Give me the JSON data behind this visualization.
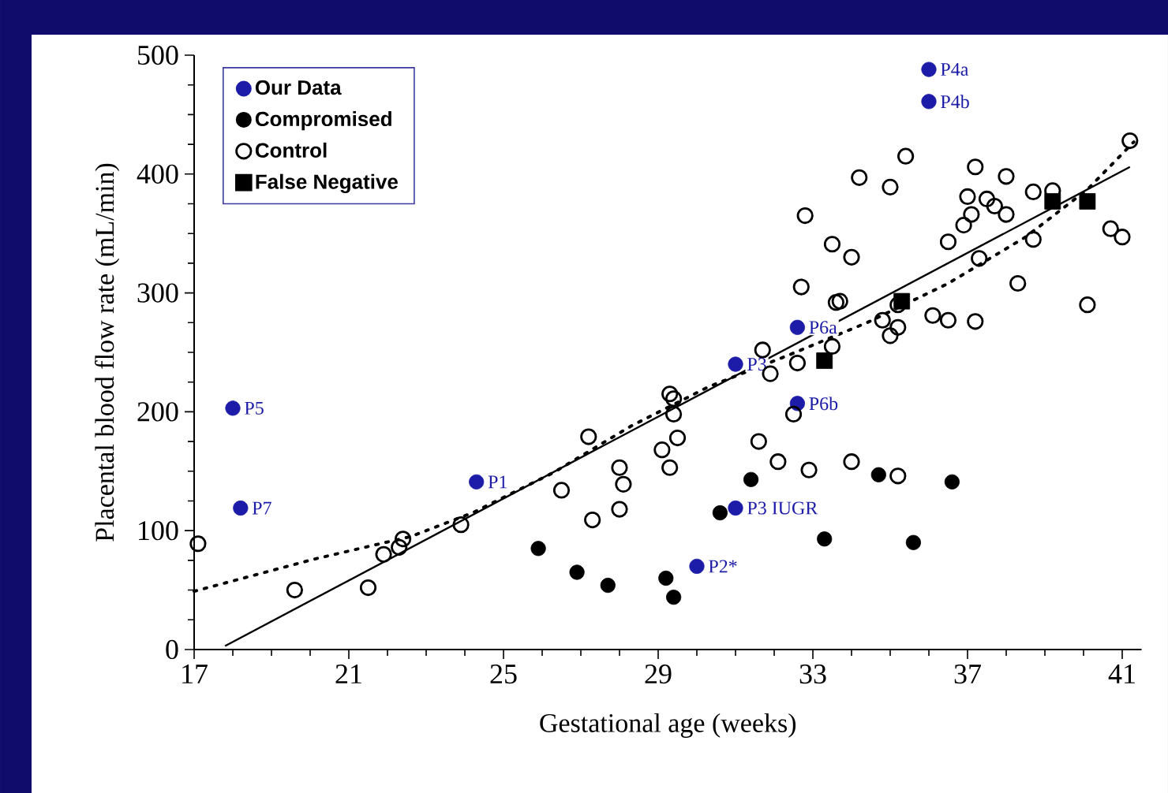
{
  "chart_data": {
    "type": "scatter",
    "xlabel": "Gestational age (weeks)",
    "ylabel": "Placental blood flow rate (mL/min)",
    "xlim": [
      17,
      41.5
    ],
    "ylim": [
      0,
      500
    ],
    "xticks": [
      17,
      21,
      25,
      29,
      33,
      37,
      41
    ],
    "yticks": [
      0,
      100,
      200,
      300,
      400,
      500
    ],
    "legend": "top left",
    "grid": false,
    "series": [
      {
        "type": "line",
        "color": "#000000",
        "line_style": "solid",
        "marker": "none",
        "x": [
          17.8,
          41.2
        ],
        "values": [
          3,
          406
        ]
      },
      {
        "type": "line",
        "color": "#000000",
        "line_style": "dotted",
        "marker": "none",
        "x": [
          17,
          20.1,
          22.6,
          24.2,
          26.3,
          28.3,
          30.3,
          32.4,
          34.4,
          36.5,
          38.5,
          40.1,
          41.3
        ],
        "values": [
          49,
          76,
          95,
          115,
          149,
          188,
          221,
          248,
          275,
          308,
          347,
          387,
          427
        ]
      },
      {
        "name": "Our Data",
        "color": "#1c1ca8",
        "marker": "circle",
        "x": [
          18.0,
          18.2,
          24.3,
          31.0,
          32.6,
          32.6,
          31.0,
          30.0,
          36.0,
          36.0
        ],
        "values": [
          203,
          119,
          141,
          240,
          271,
          207,
          119,
          70,
          488,
          461
        ]
      },
      {
        "name": "Compromised",
        "color": "#000000",
        "marker": "circle",
        "x": [
          25.9,
          26.9,
          27.7,
          29.2,
          29.4,
          30.6,
          31.4,
          33.3,
          34.7,
          35.6,
          36.6
        ],
        "values": [
          85,
          65,
          54,
          60,
          44,
          115,
          143,
          93,
          147,
          90,
          141
        ]
      },
      {
        "name": "Control",
        "color": "#000000",
        "marker": "open circle",
        "x": [
          17.1,
          19.6,
          21.5,
          21.9,
          22.4,
          22.3,
          23.9,
          26.5,
          27.2,
          27.3,
          28.0,
          28.1,
          28.0,
          29.1,
          29.3,
          29.4,
          29.4,
          29.5,
          29.3,
          31.6,
          32.1,
          32.9,
          34.0,
          35.2,
          32.5,
          31.7,
          32.6,
          31.9,
          33.5,
          35.0,
          32.8,
          33.5,
          34.0,
          34.2,
          35.0,
          35.4,
          32.7,
          33.6,
          33.7,
          34.8,
          35.2,
          35.2,
          36.1,
          36.5,
          37.2,
          37.2,
          38.0,
          38.7,
          39.2,
          37.0,
          37.5,
          37.7,
          38.0,
          37.1,
          36.9,
          36.5,
          38.7,
          37.3,
          38.3,
          40.1,
          40.7,
          41.0,
          41.2
        ],
        "values": [
          89,
          50,
          52,
          80,
          93,
          86,
          105,
          134,
          179,
          109,
          153,
          139,
          118,
          168,
          153,
          211,
          198,
          178,
          215,
          175,
          158,
          151,
          158,
          146,
          198,
          252,
          241,
          232,
          255,
          264,
          365,
          341,
          330,
          397,
          389,
          415,
          305,
          292,
          293,
          277,
          271,
          290,
          281,
          277,
          276,
          406,
          398,
          385,
          386,
          381,
          379,
          373,
          366,
          366,
          357,
          343,
          345,
          329,
          308,
          290,
          354,
          347,
          428
        ]
      },
      {
        "name": "False Negative",
        "color": "#000000",
        "marker": "square",
        "x": [
          33.3,
          35.3,
          39.2,
          40.1
        ],
        "values": [
          243,
          293,
          377,
          377
        ]
      }
    ],
    "annotations": [
      {
        "text": "P5",
        "x": 18.0,
        "y": 203
      },
      {
        "text": "P7",
        "x": 18.2,
        "y": 119
      },
      {
        "text": "P1",
        "x": 24.3,
        "y": 141
      },
      {
        "text": "P3",
        "x": 31.0,
        "y": 240
      },
      {
        "text": "P6a",
        "x": 32.6,
        "y": 271
      },
      {
        "text": "P6b",
        "x": 32.6,
        "y": 207
      },
      {
        "text": "P3 IUGR",
        "x": 31.0,
        "y": 119
      },
      {
        "text": "P2*",
        "x": 30.0,
        "y": 70
      },
      {
        "text": "P4a",
        "x": 36.0,
        "y": 488
      },
      {
        "text": "P4b",
        "x": 36.0,
        "y": 461
      }
    ]
  }
}
